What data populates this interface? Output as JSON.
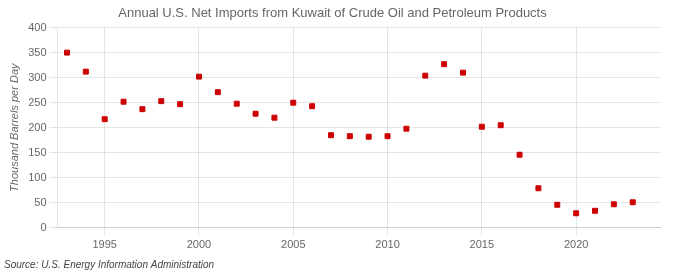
{
  "chart_data": {
    "type": "scatter",
    "title": "Annual U.S. Net Imports from Kuwait of Crude Oil and Petroleum Products",
    "ylabel": "Thousand Barrels per Day",
    "annotation": "Source: U.S. Energy Information Administration",
    "x": [
      1993,
      1994,
      1995,
      1996,
      1997,
      1998,
      1999,
      2000,
      2001,
      2002,
      2003,
      2004,
      2005,
      2006,
      2007,
      2008,
      2009,
      2010,
      2011,
      2012,
      2013,
      2014,
      2015,
      2016,
      2017,
      2018,
      2019,
      2020,
      2021,
      2022,
      2023
    ],
    "values": [
      350,
      312,
      217,
      252,
      237,
      253,
      247,
      302,
      271,
      248,
      228,
      220,
      250,
      243,
      185,
      183,
      182,
      183,
      198,
      304,
      327,
      310,
      202,
      205,
      146,
      79,
      46,
      29,
      34,
      47,
      51
    ],
    "color": "#cc0000",
    "marker": "square",
    "xlim": [
      1992.5,
      2024.5
    ],
    "xticks": [
      1995,
      2000,
      2005,
      2010,
      2015,
      2020
    ],
    "ylim": [
      0,
      400
    ],
    "yticks": [
      0,
      50,
      100,
      150,
      200,
      250,
      300,
      350,
      400
    ],
    "grid": true
  }
}
